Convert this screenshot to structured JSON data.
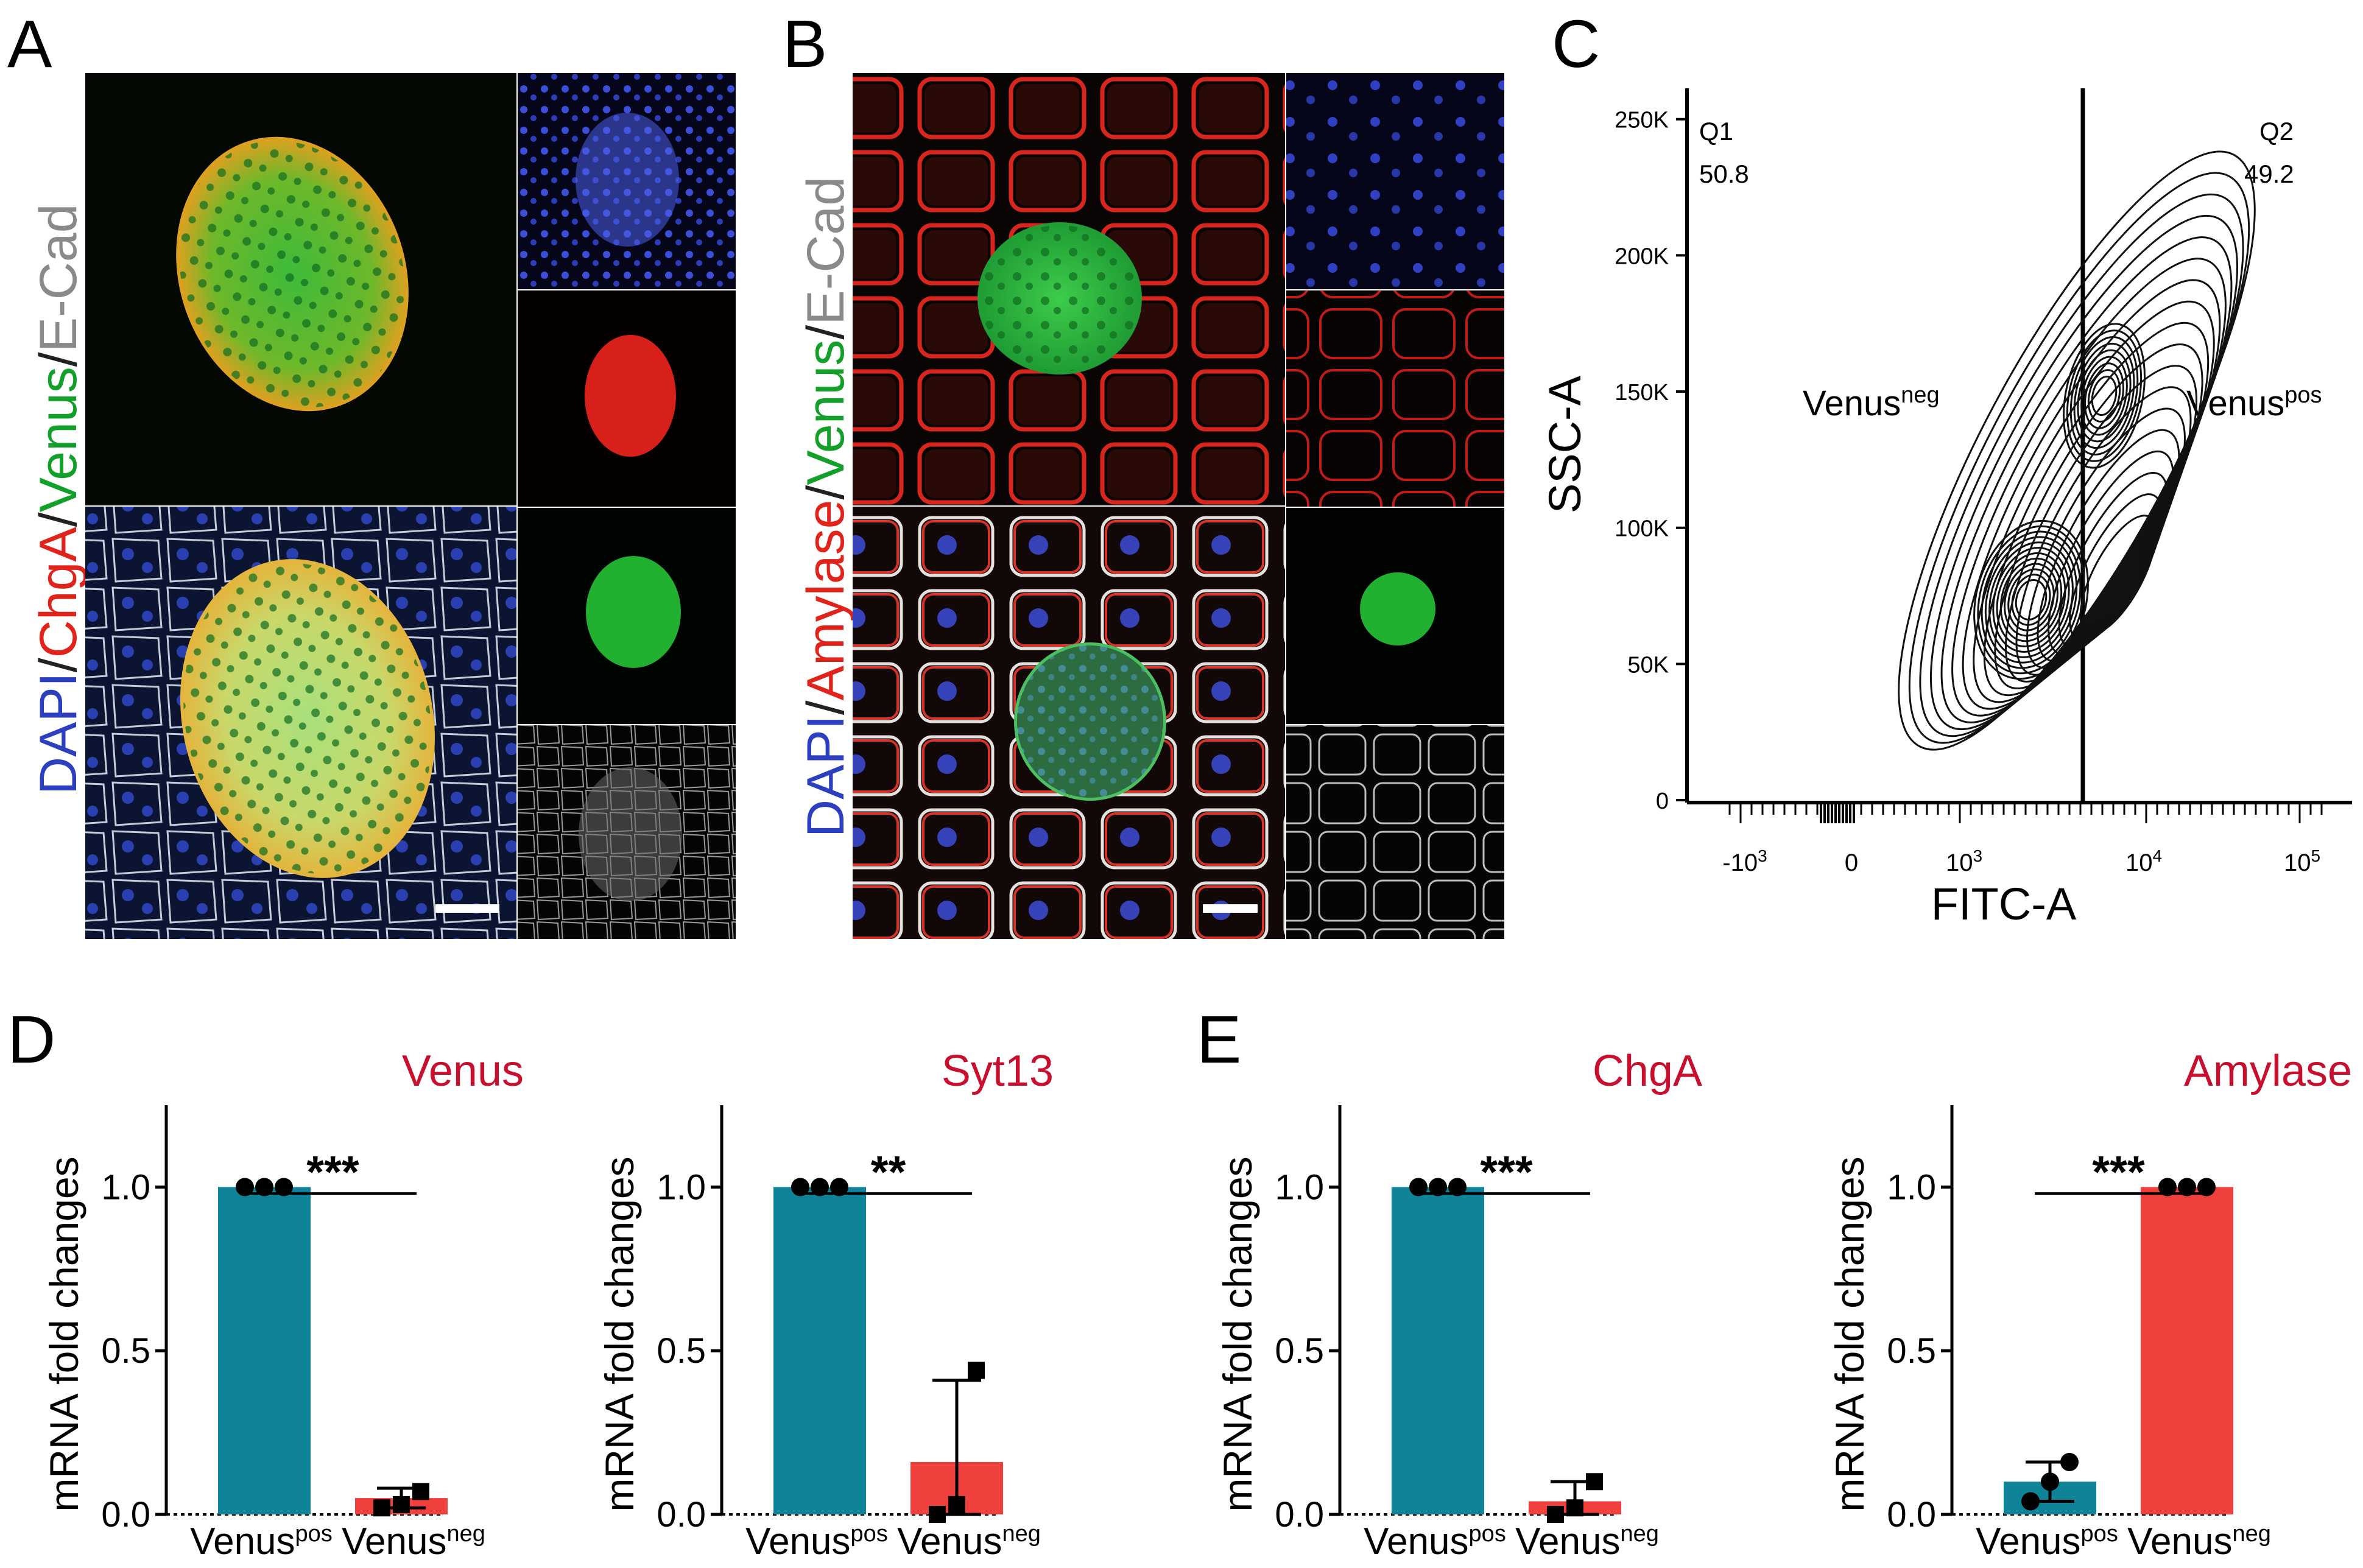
{
  "panels": {
    "A": {
      "letter": "A",
      "label_parts": [
        {
          "text": "DAPI",
          "color": "#2b3fbf"
        },
        {
          "text": "/",
          "color": "#222222"
        },
        {
          "text": "ChgA",
          "color": "#e0241b"
        },
        {
          "text": "/",
          "color": "#222222"
        },
        {
          "text": "Venus",
          "color": "#12a02a"
        },
        {
          "text": "/",
          "color": "#222222"
        },
        {
          "text": "E-Cad",
          "color": "#8a8a8a"
        }
      ]
    },
    "B": {
      "letter": "B",
      "label_parts": [
        {
          "text": "DAPI",
          "color": "#2b3fbf"
        },
        {
          "text": "/",
          "color": "#222222"
        },
        {
          "text": "Amylase",
          "color": "#e0241b"
        },
        {
          "text": "/",
          "color": "#222222"
        },
        {
          "text": "Venus",
          "color": "#12a02a"
        },
        {
          "text": "/",
          "color": "#222222"
        },
        {
          "text": "E-Cad",
          "color": "#8a8a8a"
        }
      ]
    },
    "C": {
      "letter": "C",
      "xlabel": "FITC-A",
      "ylabel": "SSC-A",
      "yticks": [
        "250K",
        "200K",
        "150K",
        "100K",
        "50K",
        "0"
      ],
      "xticks": [
        {
          "base": "-10",
          "exp": "3"
        },
        {
          "base": "0",
          "exp": ""
        },
        {
          "base": "10",
          "exp": "3"
        },
        {
          "base": "10",
          "exp": "4"
        },
        {
          "base": "10",
          "exp": "5"
        }
      ],
      "q1_name": "Q1",
      "q1_value": "50.8",
      "q2_name": "Q2",
      "q2_value": "49.2",
      "left_gate_base": "Venus",
      "left_gate_sup": "neg",
      "right_gate_base": "Venus",
      "right_gate_sup": "pos"
    },
    "D": {
      "letter": "D"
    },
    "E": {
      "letter": "E"
    }
  },
  "colors": {
    "venus_pos_bar": "#0f8398",
    "venus_neg_bar": "#f0403d",
    "title_red": "#c8102e"
  },
  "bar_common": {
    "ylabel": "mRNA fold changes",
    "cat_base": [
      "Venus",
      "Venus"
    ],
    "cat_sup": [
      "pos",
      "neg"
    ]
  },
  "chart_data": [
    {
      "type": "bar",
      "title": "Venus",
      "categories": [
        "Venus pos",
        "Venus neg"
      ],
      "values": [
        1.0,
        0.05
      ],
      "error_up": [
        0,
        0.03
      ],
      "points": [
        [
          1.0,
          1.0,
          1.0
        ],
        [
          0.02,
          0.03,
          0.07
        ]
      ],
      "significance": "***",
      "ylabel": "mRNA fold changes",
      "ylim": [
        0,
        1.25
      ],
      "yticks": [
        "0.0",
        "0.5",
        "1.0"
      ]
    },
    {
      "type": "bar",
      "title": "Syt13",
      "categories": [
        "Venus pos",
        "Venus neg"
      ],
      "values": [
        1.0,
        0.16
      ],
      "error_up": [
        0,
        0.25
      ],
      "points": [
        [
          1.0,
          1.0,
          1.0
        ],
        [
          0.0,
          0.03,
          0.44
        ]
      ],
      "significance": "**",
      "ylabel": "mRNA fold changes",
      "ylim": [
        0,
        1.25
      ],
      "yticks": [
        "0.0",
        "0.5",
        "1.0"
      ]
    },
    {
      "type": "bar",
      "title": "ChgA",
      "categories": [
        "Venus pos",
        "Venus neg"
      ],
      "values": [
        1.0,
        0.04
      ],
      "error_up": [
        0,
        0.06
      ],
      "points": [
        [
          1.0,
          1.0,
          1.0
        ],
        [
          0.0,
          0.02,
          0.1
        ]
      ],
      "significance": "***",
      "ylabel": "mRNA fold changes",
      "ylim": [
        0,
        1.25
      ],
      "yticks": [
        "0.0",
        "0.5",
        "1.0"
      ]
    },
    {
      "type": "bar",
      "title": "Amylase",
      "categories": [
        "Venus pos",
        "Venus neg"
      ],
      "values": [
        0.1,
        1.0
      ],
      "error_up": [
        0.06,
        0
      ],
      "points": [
        [
          0.04,
          0.1,
          0.16
        ],
        [
          1.0,
          1.0,
          1.0
        ]
      ],
      "significance": "***",
      "ylabel": "mRNA fold changes",
      "ylim": [
        0,
        1.25
      ],
      "yticks": [
        "0.0",
        "0.5",
        "1.0"
      ]
    }
  ]
}
